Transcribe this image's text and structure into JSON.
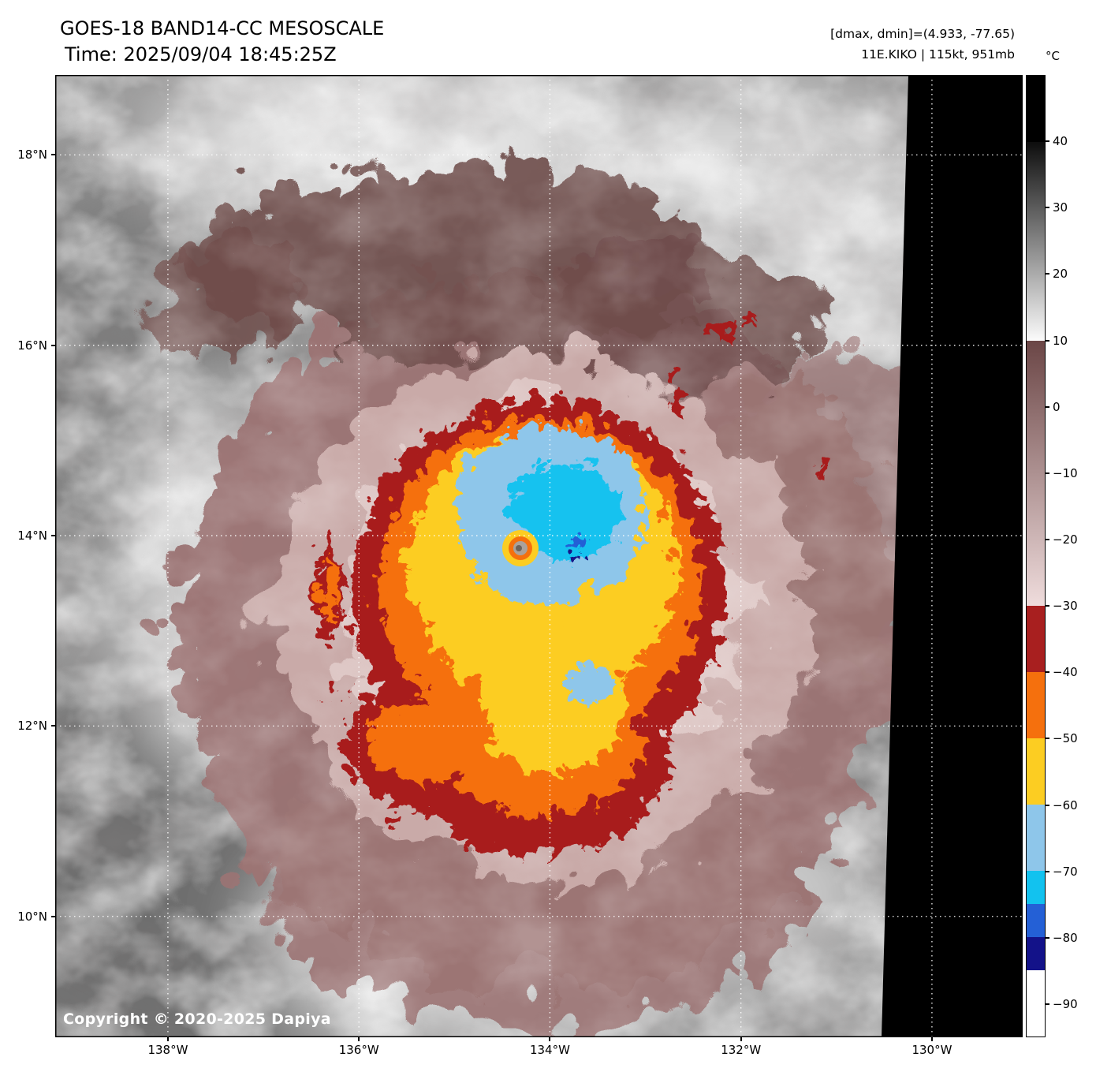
{
  "header": {
    "title_line1": "GOES-18 BAND14-CC MESOSCALE",
    "title_line2": "Time: 2025/09/04 18:45:25Z",
    "info_line1": "[dmax, dmin]=(4.933, -77.65)",
    "info_line2": "11E.KIKO | 115kt, 951mb"
  },
  "footer": {
    "copyright": "Copyright © 2020-2025 Dapiya"
  },
  "chart_data": {
    "type": "heatmap",
    "title": "GOES-18 BAND14-CC MESOSCALE",
    "time_utc": "2025/09/04 18:45:25Z",
    "satellite": "GOES-18",
    "band": "BAND14-CC",
    "sector": "MESOSCALE",
    "storm": {
      "designation": "11E",
      "name": "KIKO",
      "intensity": "115kt",
      "pressure": "951mb",
      "dmax_c": 4.933,
      "dmin_c": -77.65
    },
    "x_axis": {
      "unit": "degrees west",
      "range": [
        139.18,
        129.05
      ],
      "ticks": [
        {
          "value": 138,
          "label": "138°W"
        },
        {
          "value": 136,
          "label": "136°W"
        },
        {
          "value": 134,
          "label": "134°W"
        },
        {
          "value": 132,
          "label": "132°W"
        },
        {
          "value": 130,
          "label": "130°W"
        }
      ]
    },
    "y_axis": {
      "unit": "degrees north",
      "range": [
        18.84,
        8.73
      ],
      "ticks": [
        {
          "value": 18,
          "label": "18°N"
        },
        {
          "value": 16,
          "label": "16°N"
        },
        {
          "value": 14,
          "label": "14°N"
        },
        {
          "value": 12,
          "label": "12°N"
        },
        {
          "value": 10,
          "label": "10°N"
        }
      ]
    },
    "grid": {
      "on": true,
      "style": "dotted",
      "color": "#ffffff"
    },
    "colorbar": {
      "unit": "°C",
      "range": [
        50,
        -95
      ],
      "ticks": [
        40,
        30,
        20,
        10,
        0,
        -10,
        -20,
        -30,
        -40,
        -50,
        -60,
        -70,
        -80,
        -90
      ],
      "tick_labels": [
        "40",
        "30",
        "20",
        "10",
        "0",
        "−10",
        "−20",
        "−30",
        "−40",
        "−50",
        "−60",
        "−70",
        "−80",
        "−90"
      ],
      "segments": [
        {
          "from": 50,
          "to": 40,
          "color": "#000000"
        },
        {
          "from": 40,
          "to": 10,
          "color": "#0d0d0d",
          "color2": "#fbfbfb"
        },
        {
          "from": 10,
          "to": -30,
          "color": "#6b4646",
          "color2": "#efdcdc"
        },
        {
          "from": -30,
          "to": -40,
          "color": "#a81f1f"
        },
        {
          "from": -40,
          "to": -50,
          "color": "#f5700d"
        },
        {
          "from": -50,
          "to": -60,
          "color": "#fccd22"
        },
        {
          "from": -60,
          "to": -70,
          "color": "#8ec6ea"
        },
        {
          "from": -70,
          "to": -75,
          "color": "#12c2ef"
        },
        {
          "from": -75,
          "to": -80,
          "color": "#2460d6"
        },
        {
          "from": -80,
          "to": -85,
          "color": "#131289"
        },
        {
          "from": -85,
          "to": -95,
          "color": "#ffffff"
        }
      ]
    },
    "palette": {
      "cloud_gray": "#9c9c9c",
      "cirrus_mauve": "#9b7473",
      "inner_pink": "#ddc6c4",
      "dark_red": "#a81f1f",
      "orange": "#f5700d",
      "yellow": "#fccd22",
      "light_blue": "#8ec6ea",
      "cyan": "#12c2ef",
      "no_data_black": "#000000"
    }
  }
}
